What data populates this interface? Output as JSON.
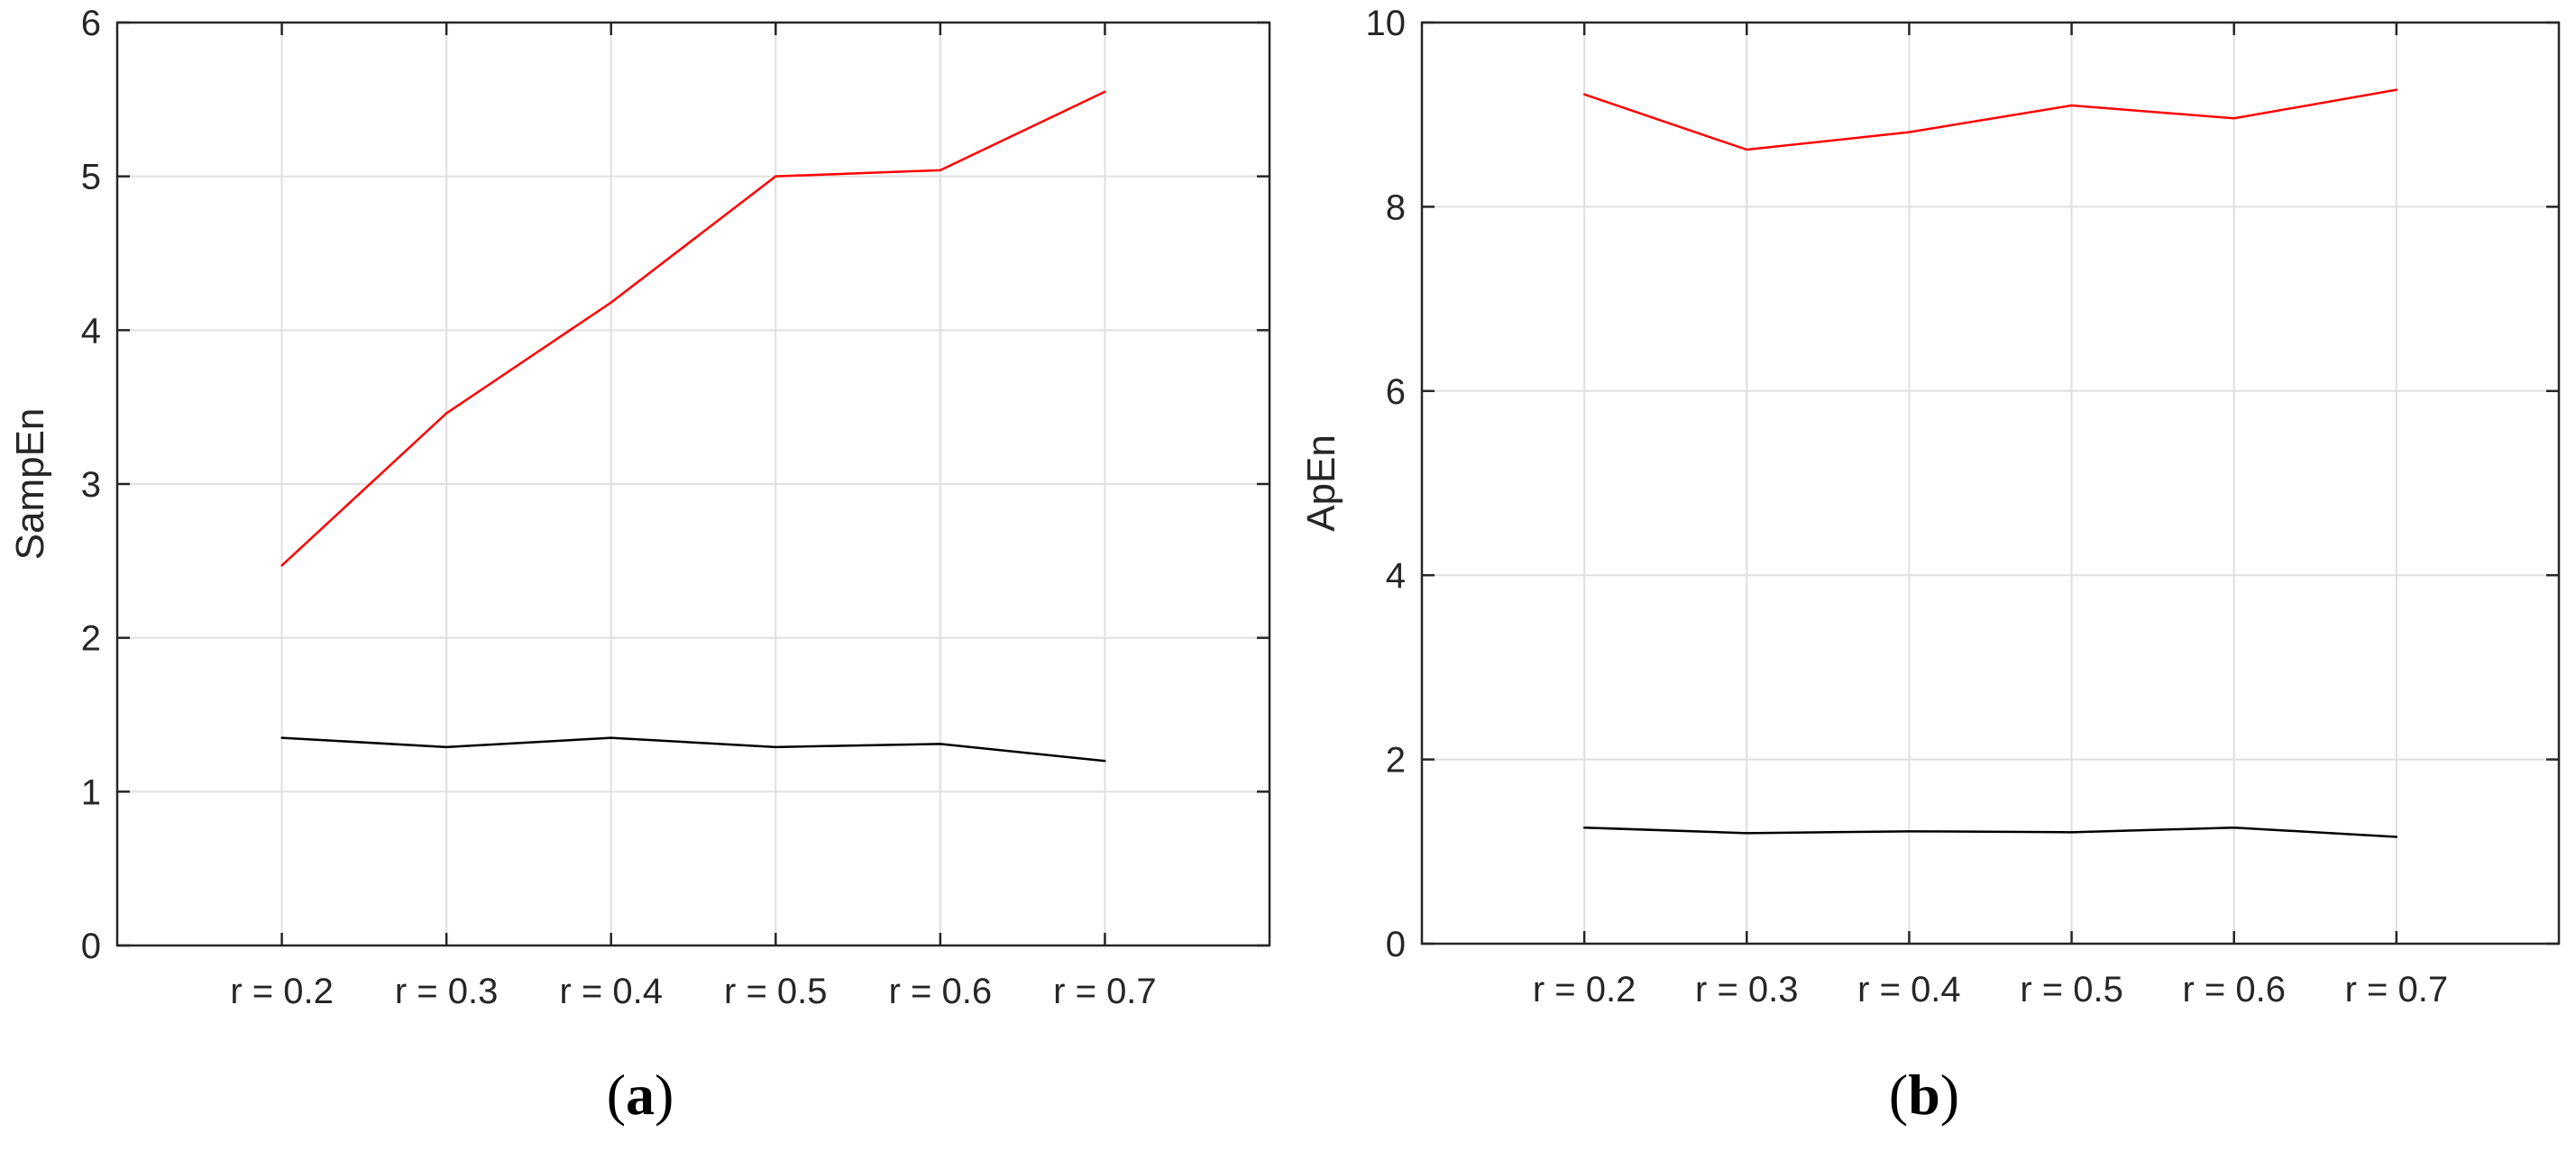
{
  "chart_data": [
    {
      "type": "line",
      "panel_label": "a",
      "title": "",
      "xlabel": "",
      "ylabel": "SampEn",
      "categories": [
        "r = 0.2",
        "r = 0.3",
        "r = 0.4",
        "r = 0.5",
        "r = 0.6",
        "r = 0.7"
      ],
      "ylim": [
        0,
        6
      ],
      "yticks": [
        0,
        1,
        2,
        3,
        4,
        5,
        6
      ],
      "grid": true,
      "legend": "none",
      "series": [
        {
          "color": "#ff0000",
          "values": [
            2.47,
            3.46,
            4.18,
            5.0,
            5.04,
            5.55
          ]
        },
        {
          "color": "#000000",
          "values": [
            1.35,
            1.29,
            1.35,
            1.29,
            1.31,
            1.2
          ]
        }
      ]
    },
    {
      "type": "line",
      "panel_label": "b",
      "title": "",
      "xlabel": "",
      "ylabel": "ApEn",
      "categories": [
        "r = 0.2",
        "r = 0.3",
        "r = 0.4",
        "r = 0.5",
        "r = 0.6",
        "r = 0.7"
      ],
      "ylim": [
        0,
        10
      ],
      "yticks": [
        0,
        2,
        4,
        6,
        8,
        10
      ],
      "grid": true,
      "legend": "none",
      "series": [
        {
          "color": "#ff0000",
          "values": [
            9.22,
            8.62,
            8.81,
            9.1,
            8.96,
            9.27
          ]
        },
        {
          "color": "#000000",
          "values": [
            1.26,
            1.2,
            1.22,
            1.21,
            1.26,
            1.16
          ]
        }
      ]
    }
  ]
}
